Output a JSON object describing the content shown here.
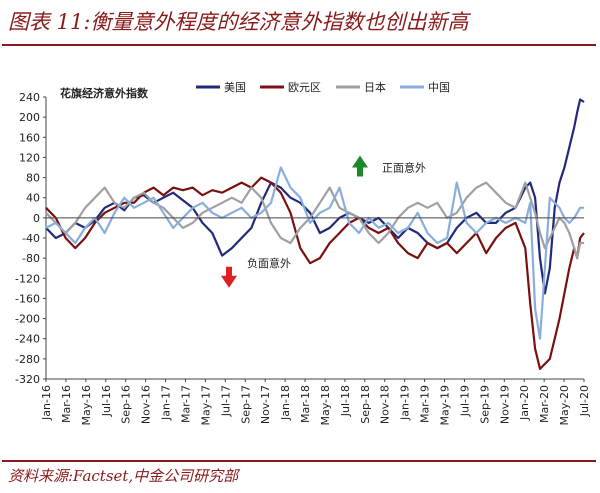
{
  "title": "图表 11:衡量意外程度的经济意外指数也创出新高",
  "source": "资料来源:Factset,中金公司研究部",
  "chart_data": {
    "type": "line",
    "ylabel": "花旗经济意外指数",
    "ylim": [
      -320,
      240
    ],
    "yticks": [
      240,
      200,
      160,
      120,
      80,
      40,
      0,
      -40,
      -80,
      -120,
      -160,
      -200,
      -240,
      -280,
      -320
    ],
    "xticks": [
      "Jan-16",
      "Mar-16",
      "May-16",
      "Jul-16",
      "Sep-16",
      "Nov-16",
      "Jan-17",
      "Mar-17",
      "May-17",
      "Jul-17",
      "Sep-17",
      "Nov-17",
      "Jan-18",
      "Mar-18",
      "May-18",
      "Jul-18",
      "Sep-18",
      "Nov-18",
      "Jan-19",
      "Mar-19",
      "May-19",
      "Jul-19",
      "Sep-19",
      "Nov-19",
      "Jan-20",
      "Mar-20",
      "May-20",
      "Jul-20"
    ],
    "x_range": [
      0,
      55
    ],
    "annotations": [
      {
        "text": "正面意外",
        "direction": "up",
        "color": "#1a8a2a"
      },
      {
        "text": "负面意外",
        "direction": "down",
        "color": "#e02020"
      }
    ],
    "series": [
      {
        "name": "美国",
        "color": "#1f2a7a",
        "x": [
          0,
          1,
          2,
          3,
          4,
          5,
          6,
          7,
          8,
          9,
          10,
          11,
          12,
          13,
          14,
          15,
          16,
          17,
          18,
          19,
          20,
          21,
          22,
          23,
          24,
          25,
          26,
          27,
          28,
          29,
          30,
          31,
          32,
          33,
          34,
          35,
          36,
          37,
          38,
          39,
          40,
          41,
          42,
          43,
          44,
          45,
          46,
          47,
          48,
          49,
          49.5,
          50,
          50.5,
          51,
          51.5,
          52,
          52.5,
          53,
          53.5,
          54,
          54.3,
          54.6,
          55
        ],
        "y": [
          -20,
          -40,
          -30,
          -10,
          -20,
          -5,
          20,
          30,
          15,
          40,
          45,
          30,
          40,
          50,
          35,
          20,
          -10,
          -30,
          -75,
          -60,
          -40,
          -20,
          30,
          70,
          60,
          40,
          30,
          10,
          -30,
          -20,
          0,
          10,
          0,
          -10,
          0,
          -20,
          -40,
          -20,
          -30,
          -50,
          -60,
          -50,
          -20,
          0,
          10,
          -10,
          -10,
          10,
          20,
          60,
          70,
          40,
          -80,
          -150,
          -100,
          20,
          70,
          100,
          140,
          180,
          210,
          235,
          230
        ]
      },
      {
        "name": "欧元区",
        "color": "#7a1010",
        "x": [
          0,
          1,
          2,
          3,
          4,
          5,
          6,
          7,
          8,
          9,
          10,
          11,
          12,
          13,
          14,
          15,
          16,
          17,
          18,
          19,
          20,
          21,
          22,
          23,
          24,
          25,
          26,
          27,
          28,
          29,
          30,
          31,
          32,
          33,
          34,
          35,
          36,
          37,
          38,
          39,
          40,
          41,
          42,
          43,
          44,
          45,
          46,
          47,
          48,
          49,
          49.5,
          50,
          50.5,
          51,
          51.5,
          52,
          52.5,
          53,
          53.5,
          54,
          54.3,
          54.6,
          55
        ],
        "y": [
          20,
          0,
          -40,
          -60,
          -40,
          -10,
          10,
          20,
          30,
          30,
          50,
          60,
          45,
          60,
          55,
          60,
          45,
          55,
          50,
          60,
          70,
          60,
          80,
          70,
          50,
          10,
          -60,
          -90,
          -80,
          -50,
          -30,
          -10,
          0,
          -20,
          -30,
          -20,
          -50,
          -70,
          -80,
          -50,
          -60,
          -50,
          -70,
          -50,
          -30,
          -70,
          -40,
          -20,
          -10,
          -60,
          -170,
          -260,
          -300,
          -290,
          -280,
          -240,
          -200,
          -150,
          -100,
          -60,
          -80,
          -40,
          -30
        ]
      },
      {
        "name": "日本",
        "color": "#a0a0a0",
        "x": [
          0,
          1,
          2,
          3,
          4,
          5,
          6,
          7,
          8,
          9,
          10,
          11,
          12,
          13,
          14,
          15,
          16,
          17,
          18,
          19,
          20,
          21,
          22,
          23,
          24,
          25,
          26,
          27,
          28,
          29,
          30,
          31,
          32,
          33,
          34,
          35,
          36,
          37,
          38,
          39,
          40,
          41,
          42,
          43,
          44,
          45,
          46,
          47,
          48,
          49,
          49.5,
          50,
          50.5,
          51,
          51.5,
          52,
          52.5,
          53,
          53.5,
          54,
          54.3,
          54.6,
          55
        ],
        "y": [
          10,
          -10,
          -30,
          -10,
          20,
          40,
          60,
          30,
          20,
          40,
          50,
          30,
          20,
          0,
          -20,
          -10,
          10,
          20,
          30,
          40,
          30,
          60,
          40,
          -10,
          -40,
          -50,
          -20,
          0,
          30,
          60,
          20,
          10,
          0,
          -30,
          -50,
          -30,
          0,
          20,
          30,
          20,
          30,
          0,
          10,
          40,
          60,
          70,
          50,
          30,
          20,
          70,
          40,
          10,
          -30,
          -60,
          -40,
          -20,
          0,
          -10,
          -30,
          -60,
          -80,
          -50,
          -50
        ]
      },
      {
        "name": "中国",
        "color": "#8aaedb",
        "x": [
          0,
          1,
          2,
          3,
          4,
          5,
          6,
          7,
          8,
          9,
          10,
          11,
          12,
          13,
          14,
          15,
          16,
          17,
          18,
          19,
          20,
          21,
          22,
          23,
          24,
          25,
          26,
          27,
          28,
          29,
          30,
          31,
          32,
          33,
          34,
          35,
          36,
          37,
          38,
          39,
          40,
          41,
          42,
          43,
          44,
          45,
          46,
          47,
          48,
          49,
          49.5,
          50,
          50.5,
          51,
          51.5,
          52,
          52.5,
          53,
          53.5,
          54,
          54.3,
          54.6,
          55
        ],
        "y": [
          -20,
          -10,
          -30,
          -50,
          -20,
          0,
          -30,
          10,
          40,
          20,
          30,
          40,
          10,
          -20,
          0,
          20,
          30,
          10,
          0,
          10,
          20,
          0,
          10,
          30,
          100,
          60,
          40,
          -10,
          10,
          20,
          60,
          -10,
          -30,
          0,
          -20,
          -10,
          -30,
          -20,
          10,
          -30,
          -50,
          -40,
          70,
          -10,
          -30,
          -10,
          0,
          -10,
          0,
          -10,
          30,
          -180,
          -240,
          -100,
          40,
          30,
          20,
          0,
          -10,
          0,
          10,
          20,
          20
        ]
      }
    ]
  }
}
